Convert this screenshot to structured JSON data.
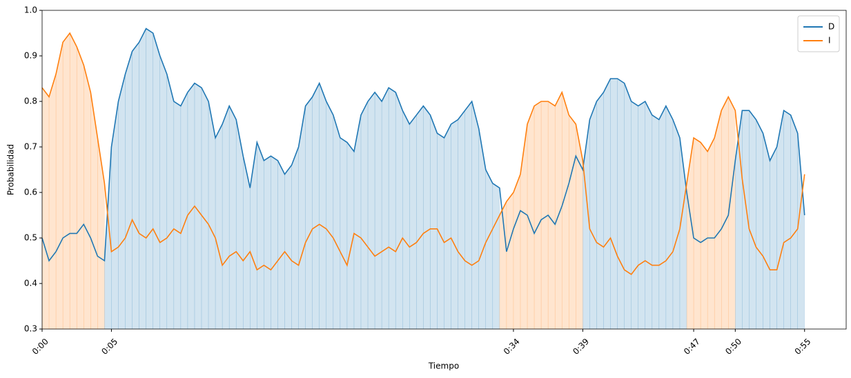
{
  "chart_data": {
    "type": "line",
    "x_label": "Tiempo",
    "y_label": "Probabilidad",
    "x": [
      0,
      0.5,
      1,
      1.5,
      2,
      2.5,
      3,
      3.5,
      4,
      4.5,
      5,
      5.5,
      6,
      6.5,
      7,
      7.5,
      8,
      8.5,
      9,
      9.5,
      10,
      10.5,
      11,
      11.5,
      12,
      12.5,
      13,
      13.5,
      14,
      14.5,
      15,
      15.5,
      16,
      16.5,
      17,
      17.5,
      18,
      18.5,
      19,
      19.5,
      20,
      20.5,
      21,
      21.5,
      22,
      22.5,
      23,
      23.5,
      24,
      24.5,
      25,
      25.5,
      26,
      26.5,
      27,
      27.5,
      28,
      28.5,
      29,
      29.5,
      30,
      30.5,
      31,
      31.5,
      32,
      32.5,
      33,
      33.5,
      34,
      34.5,
      35,
      35.5,
      36,
      36.5,
      37,
      37.5,
      38,
      38.5,
      39,
      39.5,
      40,
      40.5,
      41,
      41.5,
      42,
      42.5,
      43,
      43.5,
      44,
      44.5,
      45,
      45.5,
      46,
      46.5,
      47,
      47.5,
      48,
      48.5,
      49,
      49.5,
      50,
      50.5,
      51,
      51.5,
      52,
      52.5,
      53,
      53.5,
      54,
      54.5,
      55
    ],
    "series": [
      {
        "name": "D",
        "color": "#1f77b4",
        "values": [
          0.5,
          0.45,
          0.47,
          0.5,
          0.51,
          0.51,
          0.53,
          0.5,
          0.46,
          0.45,
          0.7,
          0.8,
          0.86,
          0.91,
          0.93,
          0.96,
          0.95,
          0.9,
          0.86,
          0.8,
          0.79,
          0.82,
          0.84,
          0.83,
          0.8,
          0.72,
          0.75,
          0.79,
          0.76,
          0.68,
          0.61,
          0.71,
          0.67,
          0.68,
          0.67,
          0.64,
          0.66,
          0.7,
          0.79,
          0.81,
          0.84,
          0.8,
          0.77,
          0.72,
          0.71,
          0.69,
          0.77,
          0.8,
          0.82,
          0.8,
          0.83,
          0.82,
          0.78,
          0.75,
          0.77,
          0.79,
          0.77,
          0.73,
          0.72,
          0.75,
          0.76,
          0.78,
          0.8,
          0.74,
          0.65,
          0.62,
          0.61,
          0.47,
          0.52,
          0.56,
          0.55,
          0.51,
          0.54,
          0.55,
          0.53,
          0.57,
          0.62,
          0.68,
          0.65,
          0.76,
          0.8,
          0.82,
          0.85,
          0.85,
          0.84,
          0.8,
          0.79,
          0.8,
          0.77,
          0.76,
          0.79,
          0.76,
          0.72,
          0.6,
          0.5,
          0.49,
          0.5,
          0.5,
          0.52,
          0.55,
          0.67,
          0.78,
          0.78,
          0.76,
          0.73,
          0.67,
          0.7,
          0.78,
          0.77,
          0.73,
          0.55
        ]
      },
      {
        "name": "I",
        "color": "#ff7f0e",
        "values": [
          0.83,
          0.81,
          0.86,
          0.93,
          0.95,
          0.92,
          0.88,
          0.82,
          0.72,
          0.62,
          0.47,
          0.48,
          0.5,
          0.54,
          0.51,
          0.5,
          0.52,
          0.49,
          0.5,
          0.52,
          0.51,
          0.55,
          0.57,
          0.55,
          0.53,
          0.5,
          0.44,
          0.46,
          0.47,
          0.45,
          0.47,
          0.43,
          0.44,
          0.43,
          0.45,
          0.47,
          0.45,
          0.44,
          0.49,
          0.52,
          0.53,
          0.52,
          0.5,
          0.47,
          0.44,
          0.51,
          0.5,
          0.48,
          0.46,
          0.47,
          0.48,
          0.47,
          0.5,
          0.48,
          0.49,
          0.51,
          0.52,
          0.52,
          0.49,
          0.5,
          0.47,
          0.45,
          0.44,
          0.45,
          0.49,
          0.52,
          0.55,
          0.58,
          0.6,
          0.64,
          0.75,
          0.79,
          0.8,
          0.8,
          0.79,
          0.82,
          0.77,
          0.75,
          0.67,
          0.52,
          0.49,
          0.48,
          0.5,
          0.46,
          0.43,
          0.42,
          0.44,
          0.45,
          0.44,
          0.44,
          0.45,
          0.47,
          0.52,
          0.62,
          0.72,
          0.71,
          0.69,
          0.72,
          0.78,
          0.81,
          0.78,
          0.63,
          0.52,
          0.48,
          0.46,
          0.43,
          0.43,
          0.49,
          0.5,
          0.52,
          0.64
        ]
      }
    ],
    "xlim": [
      0,
      58
    ],
    "xticks": [
      {
        "value": 0,
        "label": "0:00"
      },
      {
        "value": 5,
        "label": "0:05"
      },
      {
        "value": 34,
        "label": "0:34"
      },
      {
        "value": 39,
        "label": "0:39"
      },
      {
        "value": 47,
        "label": "0:47"
      },
      {
        "value": 50,
        "label": "0:50"
      },
      {
        "value": 55,
        "label": "0:55"
      }
    ],
    "ylim": [
      0.3,
      1.0
    ],
    "yticks": [
      0.3,
      0.4,
      0.5,
      0.6,
      0.7,
      0.8,
      0.9,
      {
        "value": 1,
        "label": "1.0"
      }
    ],
    "legend": "upper right"
  }
}
